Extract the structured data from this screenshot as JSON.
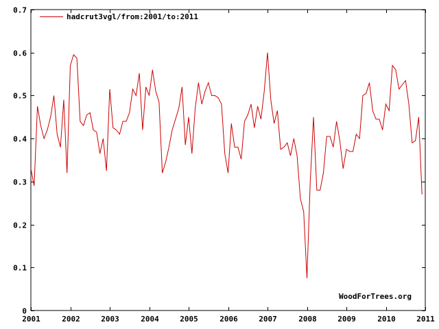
{
  "chart_data": {
    "type": "line",
    "title": "",
    "xlabel": "",
    "ylabel": "",
    "xlim": [
      2001,
      2011
    ],
    "ylim": [
      0,
      0.7
    ],
    "x_ticks": [
      2001,
      2002,
      2003,
      2004,
      2005,
      2006,
      2007,
      2008,
      2009,
      2010,
      2011
    ],
    "y_ticks": [
      0,
      0.1,
      0.2,
      0.3,
      0.4,
      0.5,
      0.6,
      0.7
    ],
    "x_tick_labels": [
      "2001",
      "2002",
      "2003",
      "2004",
      "2005",
      "2006",
      "2007",
      "2008",
      "2009",
      "2010",
      "2011"
    ],
    "y_tick_labels": [
      "0",
      "0.1",
      "0.2",
      "0.3",
      "0.4",
      "0.5",
      "0.6",
      "0.7"
    ],
    "legend": {
      "position": "top-left",
      "entries": [
        "hadcrut3vgl/from:2001/to:2011"
      ]
    },
    "watermark": "WoodForTrees.org",
    "series": [
      {
        "name": "hadcrut3vgl/from:2001/to:2011",
        "color": "#cc0000",
        "start": 2001.0,
        "step": 0.08333333,
        "values": [
          0.33,
          0.29,
          0.475,
          0.43,
          0.4,
          0.42,
          0.45,
          0.5,
          0.41,
          0.38,
          0.49,
          0.32,
          0.57,
          0.595,
          0.587,
          0.44,
          0.43,
          0.455,
          0.46,
          0.42,
          0.415,
          0.365,
          0.4,
          0.325,
          0.515,
          0.425,
          0.42,
          0.41,
          0.44,
          0.44,
          0.46,
          0.515,
          0.5,
          0.552,
          0.42,
          0.52,
          0.5,
          0.56,
          0.51,
          0.485,
          0.32,
          0.345,
          0.38,
          0.42,
          0.445,
          0.47,
          0.52,
          0.385,
          0.45,
          0.365,
          0.47,
          0.53,
          0.48,
          0.51,
          0.53,
          0.5,
          0.5,
          0.495,
          0.48,
          0.365,
          0.32,
          0.435,
          0.38,
          0.38,
          0.352,
          0.44,
          0.455,
          0.48,
          0.425,
          0.475,
          0.445,
          0.51,
          0.6,
          0.49,
          0.435,
          0.465,
          0.375,
          0.38,
          0.39,
          0.36,
          0.4,
          0.36,
          0.26,
          0.23,
          0.075,
          0.3,
          0.45,
          0.28,
          0.28,
          0.32,
          0.405,
          0.405,
          0.38,
          0.44,
          0.395,
          0.33,
          0.375,
          0.37,
          0.37,
          0.41,
          0.4,
          0.5,
          0.505,
          0.53,
          0.465,
          0.445,
          0.445,
          0.42,
          0.48,
          0.465,
          0.57,
          0.56,
          0.515,
          0.525,
          0.535,
          0.48,
          0.39,
          0.395,
          0.45,
          0.27
        ]
      }
    ]
  }
}
